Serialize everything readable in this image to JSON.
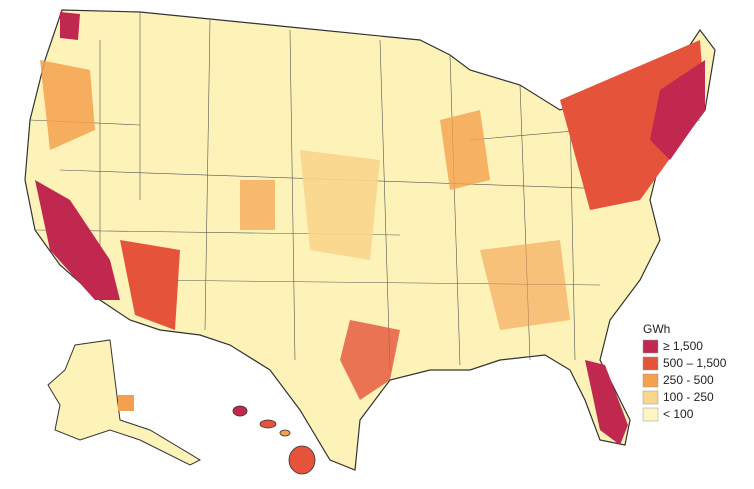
{
  "legend": {
    "title": "GWh",
    "items": [
      {
        "label": "≥ 1,500",
        "color": "#c0284f"
      },
      {
        "label": "500 – 1,500",
        "color": "#e4533a"
      },
      {
        "label": "250 - 500",
        "color": "#f4a04e"
      },
      {
        "label": "100 - 250",
        "color": "#fad58c"
      },
      {
        "label": "< 100",
        "color": "#fdf5c4"
      }
    ]
  }
}
